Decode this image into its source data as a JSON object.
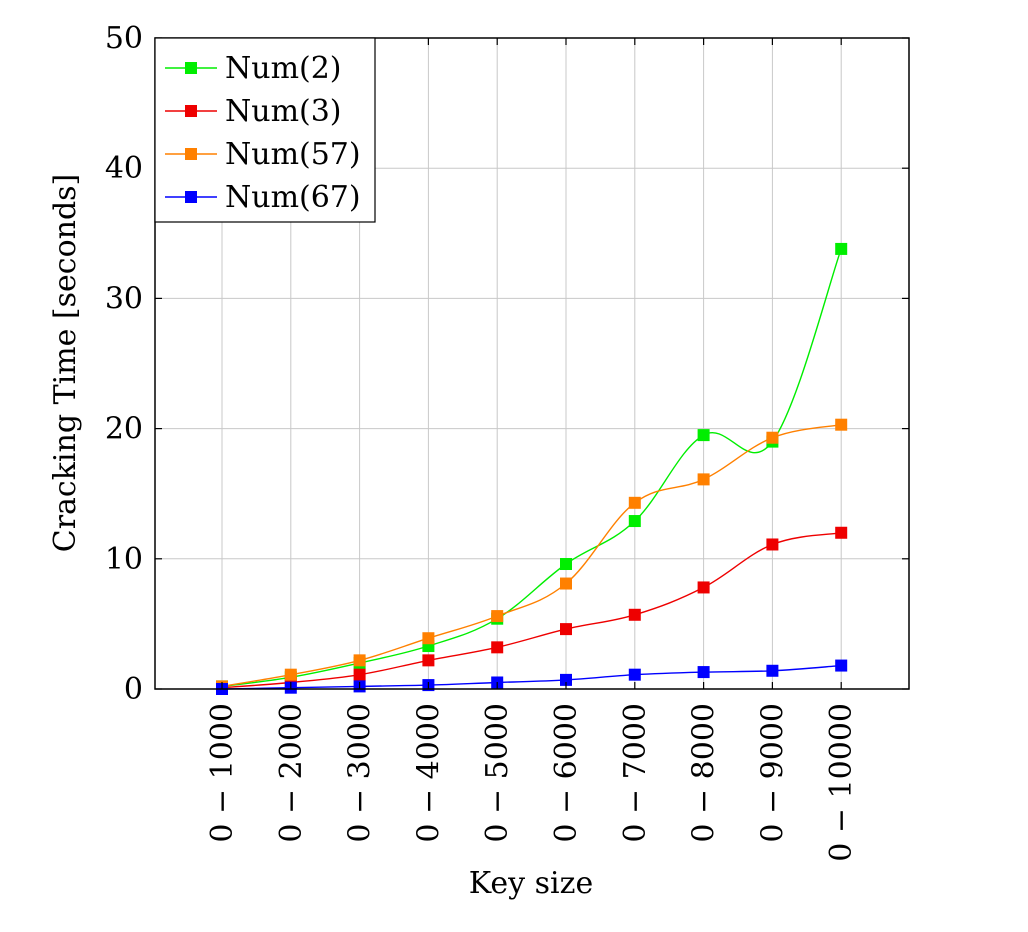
{
  "chart_data": {
    "type": "line",
    "xlabel": "Key size",
    "ylabel": "Cracking Time [seconds]",
    "categories": [
      "0 − 1000",
      "0 − 2000",
      "0 − 3000",
      "0 − 4000",
      "0 − 5000",
      "0 − 6000",
      "0 − 7000",
      "0 − 8000",
      "0 − 9000",
      "0 − 10000"
    ],
    "ylim": [
      0,
      50
    ],
    "yticks": [
      0,
      10,
      20,
      30,
      40,
      50
    ],
    "grid": true,
    "legend_position": "top-left",
    "series": [
      {
        "name": "Num(2)",
        "color": "#00ee00",
        "values": [
          0.2,
          0.9,
          2.0,
          3.3,
          5.4,
          9.6,
          12.9,
          19.5,
          19.0,
          33.8
        ]
      },
      {
        "name": "Num(3)",
        "color": "#ee0000",
        "values": [
          0.1,
          0.5,
          1.1,
          2.2,
          3.2,
          4.6,
          5.7,
          7.8,
          11.1,
          12.0
        ]
      },
      {
        "name": "Num(57)",
        "color": "#ff8000",
        "values": [
          0.2,
          1.1,
          2.2,
          3.9,
          5.6,
          8.1,
          14.3,
          16.1,
          19.3,
          20.3
        ]
      },
      {
        "name": "Num(67)",
        "color": "#0000ff",
        "values": [
          0.0,
          0.1,
          0.2,
          0.3,
          0.5,
          0.7,
          1.1,
          1.3,
          1.4,
          1.8
        ]
      }
    ]
  }
}
